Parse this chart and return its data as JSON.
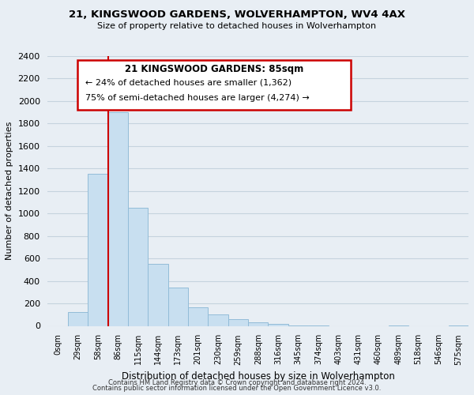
{
  "title": "21, KINGSWOOD GARDENS, WOLVERHAMPTON, WV4 4AX",
  "subtitle": "Size of property relative to detached houses in Wolverhampton",
  "xlabel": "Distribution of detached houses by size in Wolverhampton",
  "ylabel": "Number of detached properties",
  "bin_labels": [
    "0sqm",
    "29sqm",
    "58sqm",
    "86sqm",
    "115sqm",
    "144sqm",
    "173sqm",
    "201sqm",
    "230sqm",
    "259sqm",
    "288sqm",
    "316sqm",
    "345sqm",
    "374sqm",
    "403sqm",
    "431sqm",
    "460sqm",
    "489sqm",
    "518sqm",
    "546sqm",
    "575sqm"
  ],
  "bar_heights": [
    0,
    125,
    1350,
    1900,
    1050,
    550,
    340,
    165,
    105,
    60,
    30,
    15,
    5,
    2,
    0,
    0,
    0,
    5,
    0,
    0,
    5
  ],
  "bar_color": "#c8dff0",
  "bar_edge_color": "#92bcd8",
  "vline_index": 3,
  "vline_color": "#cc0000",
  "annotation_title": "21 KINGSWOOD GARDENS: 85sqm",
  "annotation_line1": "← 24% of detached houses are smaller (1,362)",
  "annotation_line2": "75% of semi-detached houses are larger (4,274) →",
  "annotation_box_color": "#ffffff",
  "annotation_box_edge": "#cc0000",
  "ylim": [
    0,
    2400
  ],
  "yticks": [
    0,
    200,
    400,
    600,
    800,
    1000,
    1200,
    1400,
    1600,
    1800,
    2000,
    2200,
    2400
  ],
  "footer1": "Contains HM Land Registry data © Crown copyright and database right 2024.",
  "footer2": "Contains public sector information licensed under the Open Government Licence v3.0.",
  "bg_color": "#e8eef4",
  "plot_bg_color": "#e8eef4",
  "grid_color": "#c5d3de"
}
